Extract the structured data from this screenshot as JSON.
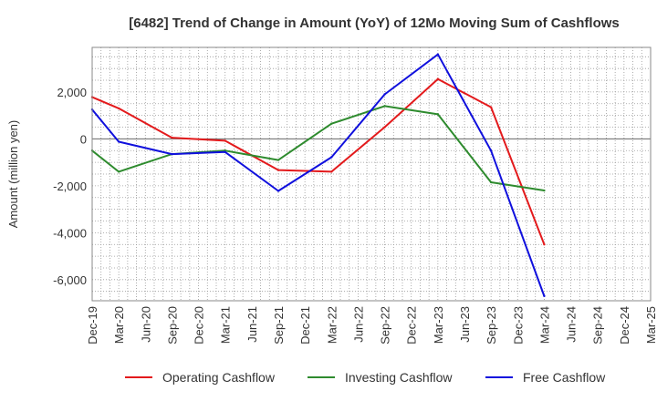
{
  "chart_data": {
    "type": "line",
    "title": "[6482]  Trend of Change in Amount (YoY) of 12Mo Moving Sum of Cashflows",
    "ylabel": "Amount (million yen)",
    "xlabel": "",
    "ylim": [
      -6900,
      3900
    ],
    "yticks": [
      2000,
      0,
      -2000,
      -4000,
      -6000
    ],
    "ytick_labels": [
      "2,000",
      "0",
      "-2,000",
      "-4,000",
      "-6,000"
    ],
    "categories": [
      "Dec-19",
      "Mar-20",
      "Jun-20",
      "Sep-20",
      "Dec-20",
      "Mar-21",
      "Jun-21",
      "Sep-21",
      "Dec-21",
      "Mar-22",
      "Jun-22",
      "Sep-22",
      "Dec-22",
      "Mar-23",
      "Jun-23",
      "Sep-23",
      "Dec-23",
      "Mar-24",
      "Jun-24",
      "Sep-24",
      "Dec-24",
      "Mar-25"
    ],
    "grid": true,
    "legend_position": "bottom",
    "series": [
      {
        "name": "Operating Cashflow",
        "color": "#e31a1c",
        "values": [
          1780,
          1300,
          null,
          50,
          null,
          -80,
          null,
          -1330,
          null,
          -1400,
          null,
          500,
          null,
          2550,
          null,
          1350,
          null,
          -4500,
          null,
          null,
          null,
          null
        ]
      },
      {
        "name": "Investing Cashflow",
        "color": "#2e8b2e",
        "values": [
          -500,
          -1400,
          null,
          -650,
          null,
          -500,
          null,
          -900,
          null,
          650,
          null,
          1400,
          null,
          1050,
          null,
          -1850,
          null,
          -2200,
          null,
          null,
          null,
          null
        ]
      },
      {
        "name": "Free Cashflow",
        "color": "#1010dd",
        "values": [
          1250,
          -120,
          null,
          -650,
          null,
          -560,
          null,
          -2220,
          null,
          -780,
          null,
          1900,
          null,
          3600,
          null,
          -500,
          null,
          -6700,
          null,
          null,
          null,
          null
        ]
      }
    ]
  }
}
